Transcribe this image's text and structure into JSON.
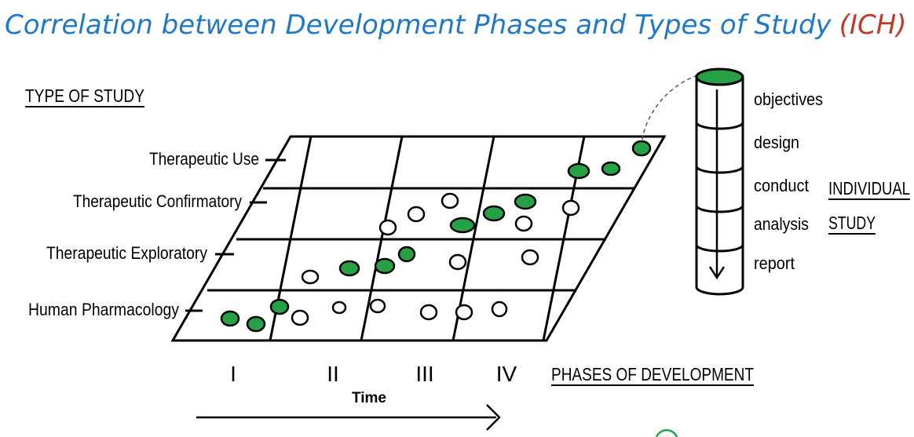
{
  "title": {
    "main": "Correlation between Development Phases and Types of Study",
    "tag": "(ICH)",
    "main_color": "#1f78c8",
    "tag_color": "#c0392b"
  },
  "axis_labels": {
    "type_of_study": "TYPE OF STUDY",
    "phases_of_development": "PHASES OF DEVELOPMENT",
    "time": "Time"
  },
  "study_types": [
    "Therapeutic Use",
    "Therapeutic Confirmatory",
    "Therapeutic Exploratory",
    "Human Pharmacology"
  ],
  "phases": [
    "I",
    "II",
    "III",
    "IV"
  ],
  "individual_study": {
    "steps": [
      "objectives",
      "design",
      "conduct",
      "analysis",
      "report"
    ],
    "label_line1": "INDIVIDUAL",
    "label_line2": "STUDY"
  },
  "colors": {
    "filled_study": "#27a145",
    "outline": "#000000"
  }
}
